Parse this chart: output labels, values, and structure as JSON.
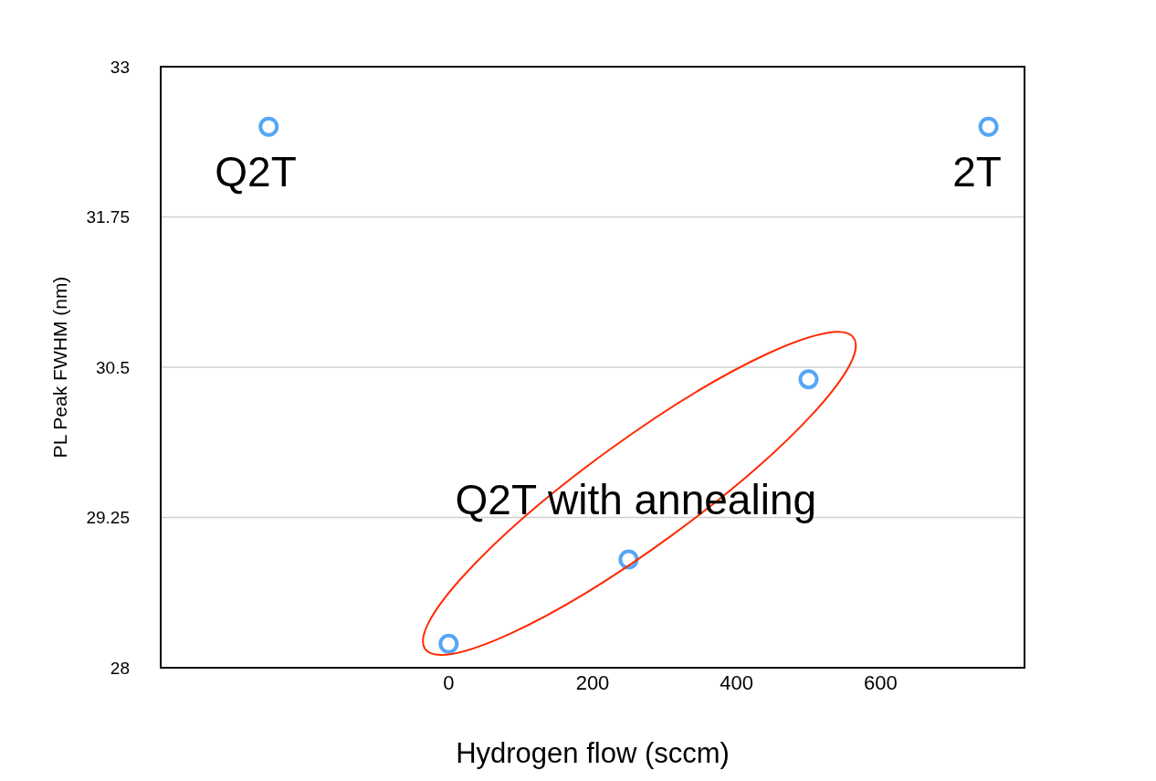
{
  "chart_data": {
    "type": "scatter",
    "xlabel": "Hydrogen flow (sccm)",
    "ylabel": "PL Peak FWHM (nm)",
    "x": [
      -250,
      750,
      500,
      250,
      0
    ],
    "values": [
      32.5,
      32.5,
      30.4,
      28.9,
      28.2
    ],
    "color": "#55a6f5",
    "xlim": [
      -400,
      800
    ],
    "xticks": [
      0,
      200,
      400,
      600
    ],
    "ylim": [
      28,
      33
    ],
    "yticks": [
      28,
      29.25,
      30.5,
      31.75,
      33
    ],
    "grid": "y",
    "marker": "circle",
    "annotations": [
      "Q2T",
      "2T",
      "Q2T with annealing"
    ]
  }
}
